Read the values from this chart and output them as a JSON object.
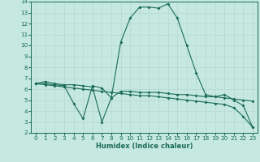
{
  "xlabel": "Humidex (Indice chaleur)",
  "background_color": "#c5e8e0",
  "line_color": "#1a6b5a",
  "grid_color": "#b8d8d0",
  "xlim": [
    -0.5,
    23.5
  ],
  "ylim": [
    2,
    14
  ],
  "xticks": [
    0,
    1,
    2,
    3,
    4,
    5,
    6,
    7,
    8,
    9,
    10,
    11,
    12,
    13,
    14,
    15,
    16,
    17,
    18,
    19,
    20,
    21,
    22,
    23
  ],
  "yticks": [
    2,
    3,
    4,
    5,
    6,
    7,
    8,
    9,
    10,
    11,
    12,
    13,
    14
  ],
  "line1_x": [
    0,
    1,
    2,
    3,
    4,
    5,
    6,
    7,
    8,
    9,
    10,
    11,
    12,
    13,
    14,
    15,
    16,
    17,
    18,
    19,
    20,
    21,
    22,
    23
  ],
  "line1_y": [
    6.5,
    6.7,
    6.5,
    6.4,
    6.4,
    6.3,
    6.2,
    3.0,
    5.2,
    10.3,
    12.5,
    13.5,
    13.5,
    13.4,
    13.8,
    12.5,
    10.0,
    7.5,
    5.5,
    5.3,
    5.5,
    5.0,
    4.5,
    2.5
  ],
  "line2_x": [
    0,
    1,
    2,
    3,
    4,
    5,
    6,
    7,
    8,
    9,
    10,
    11,
    12,
    13,
    14,
    15,
    16,
    17,
    18,
    19,
    20,
    21,
    22,
    23
  ],
  "line2_y": [
    6.5,
    6.5,
    6.4,
    6.3,
    4.7,
    3.3,
    6.3,
    6.1,
    5.2,
    5.8,
    5.8,
    5.7,
    5.7,
    5.7,
    5.6,
    5.5,
    5.5,
    5.4,
    5.3,
    5.3,
    5.2,
    5.1,
    5.0,
    4.9
  ],
  "line3_x": [
    0,
    1,
    2,
    3,
    4,
    5,
    6,
    7,
    8,
    9,
    10,
    11,
    12,
    13,
    14,
    15,
    16,
    17,
    18,
    19,
    20,
    21,
    22,
    23
  ],
  "line3_y": [
    6.5,
    6.4,
    6.3,
    6.2,
    6.1,
    6.0,
    5.9,
    5.8,
    5.7,
    5.6,
    5.5,
    5.4,
    5.4,
    5.3,
    5.2,
    5.1,
    5.0,
    4.9,
    4.8,
    4.7,
    4.6,
    4.3,
    3.5,
    2.5
  ],
  "xlabel_fontsize": 6.0,
  "tick_fontsize": 5.2,
  "linewidth": 0.8,
  "markersize": 2.0
}
